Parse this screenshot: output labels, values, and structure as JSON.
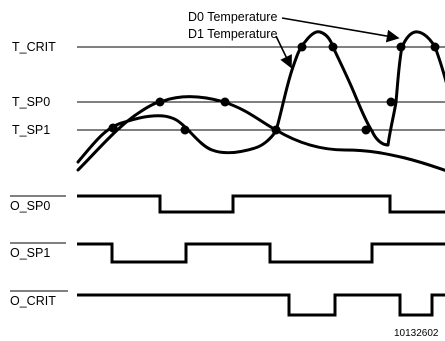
{
  "thresholds": {
    "t_crit": "T_CRIT",
    "t_sp0": "T_SP0",
    "t_sp1": "T_SP1"
  },
  "curves": {
    "d0_label": "D0 Temperature",
    "d1_label": "D1 Temperature"
  },
  "outputs": {
    "o_sp0": "O_SP0",
    "o_sp1": "O_SP1",
    "o_crit": "O_CRIT"
  },
  "figure_id": "10132602"
}
